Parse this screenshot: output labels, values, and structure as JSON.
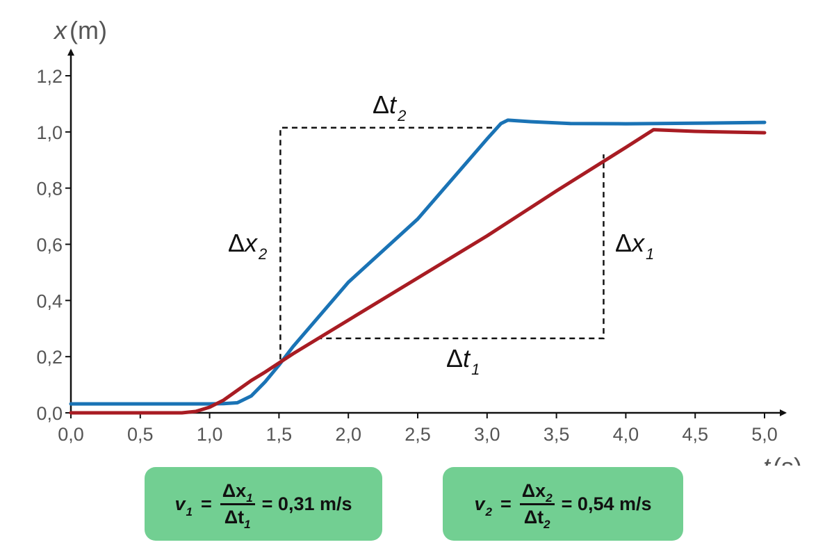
{
  "chart_data": {
    "type": "line",
    "xlabel": {
      "var": "t",
      "unit": "(s)"
    },
    "ylabel": {
      "var": "x",
      "unit": "(m)"
    },
    "xlim": [
      0,
      5.0
    ],
    "ylim": [
      0,
      1.2
    ],
    "x_ticks": [
      "0,0",
      "0,5",
      "1,0",
      "1,5",
      "2,0",
      "2,5",
      "3,0",
      "3,5",
      "4,0",
      "4,5",
      "5,0"
    ],
    "y_ticks": [
      "0,0",
      "0,2",
      "0,4",
      "0,6",
      "0,8",
      "1,0",
      "1,2"
    ],
    "grid": false,
    "series": [
      {
        "color": "#1a73b5",
        "points": [
          [
            0,
            0.032
          ],
          [
            1.0,
            0.032
          ],
          [
            1.1,
            0.033
          ],
          [
            1.2,
            0.036
          ],
          [
            1.3,
            0.06
          ],
          [
            1.4,
            0.11
          ],
          [
            1.5,
            0.17
          ],
          [
            1.6,
            0.235
          ],
          [
            2.0,
            0.465
          ],
          [
            2.5,
            0.69
          ],
          [
            3.0,
            0.975
          ],
          [
            3.1,
            1.03
          ],
          [
            3.15,
            1.042
          ],
          [
            3.3,
            1.037
          ],
          [
            3.6,
            1.03
          ],
          [
            4.0,
            1.029
          ],
          [
            4.5,
            1.031
          ],
          [
            5.0,
            1.034
          ]
        ]
      },
      {
        "color": "#a81c23",
        "points": [
          [
            0,
            0.0
          ],
          [
            0.8,
            0.0
          ],
          [
            0.9,
            0.005
          ],
          [
            1.0,
            0.02
          ],
          [
            1.1,
            0.045
          ],
          [
            1.2,
            0.08
          ],
          [
            1.3,
            0.115
          ],
          [
            1.4,
            0.145
          ],
          [
            1.6,
            0.21
          ],
          [
            2.0,
            0.33
          ],
          [
            2.5,
            0.48
          ],
          [
            3.0,
            0.63
          ],
          [
            3.5,
            0.79
          ],
          [
            4.0,
            0.945
          ],
          [
            4.2,
            1.008
          ],
          [
            4.5,
            1.002
          ],
          [
            5.0,
            0.997
          ]
        ]
      }
    ],
    "annotations": {
      "triangle_1": {
        "x_start": 1.77,
        "x_end": 3.84,
        "y_low": 0.265,
        "y_high": 0.92
      },
      "triangle_2": {
        "x_start": 1.51,
        "x_end": 3.08,
        "y_low": 0.19,
        "y_high": 1.015
      },
      "labels": {
        "delta_t1": {
          "delta": "Δ",
          "var": "t",
          "sub": "1"
        },
        "delta_x1": {
          "delta": "Δ",
          "var": "x",
          "sub": "1"
        },
        "delta_t2": {
          "delta": "Δ",
          "var": "t",
          "sub": "2"
        },
        "delta_x2": {
          "delta": "Δ",
          "var": "x",
          "sub": "2"
        }
      }
    }
  },
  "formulas": [
    {
      "v": "v",
      "v_sub": "1",
      "num": "Δx",
      "num_sub": "1",
      "den": "Δt",
      "den_sub": "1",
      "eq": "=",
      "result": "= 0,31 m/s"
    },
    {
      "v": "v",
      "v_sub": "2",
      "num": "Δx",
      "num_sub": "2",
      "den": "Δt",
      "den_sub": "2",
      "eq": "=",
      "result": "= 0,54 m/s"
    }
  ]
}
